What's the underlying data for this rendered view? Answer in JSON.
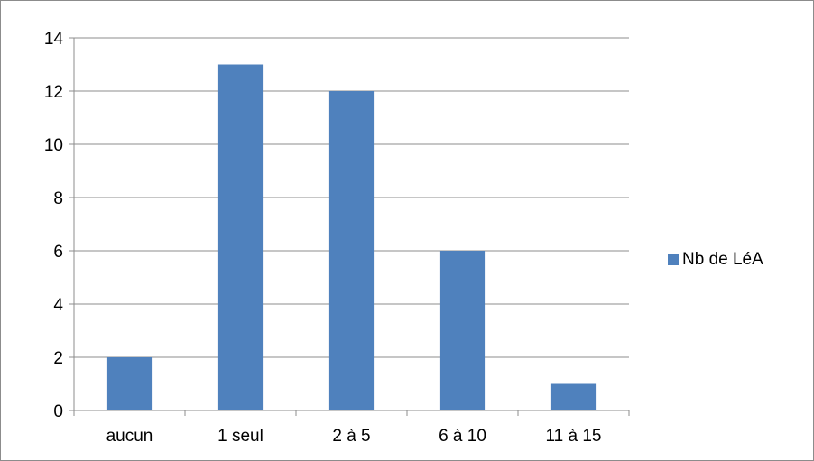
{
  "chart_data": {
    "type": "bar",
    "title": "",
    "xlabel": "",
    "ylabel": "",
    "categories": [
      "aucun",
      "1 seul",
      "2 à 5",
      "6 à 10",
      "11 à 15"
    ],
    "series": [
      {
        "name": "Nb de LéA",
        "values": [
          2,
          13,
          12,
          6,
          1
        ],
        "color": "#4f81bd"
      }
    ],
    "ylim": [
      0,
      14
    ],
    "yticks": [
      0,
      2,
      4,
      6,
      8,
      10,
      12,
      14
    ],
    "ytick_labels": [
      "0",
      "2",
      "4",
      "6",
      "8",
      "10",
      "12",
      "14"
    ],
    "grid": true,
    "gridline_color": "#8c8c8c",
    "legend_position": "right"
  }
}
